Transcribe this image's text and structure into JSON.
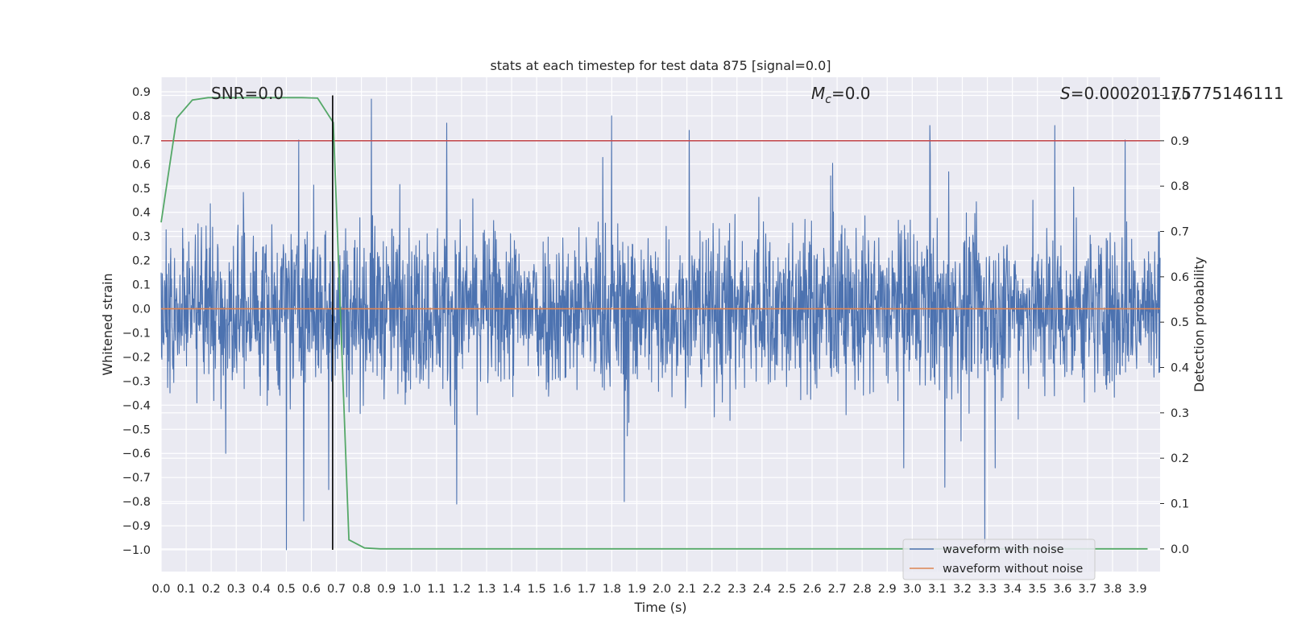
{
  "chart_data": {
    "type": "line",
    "title": "stats at each timestep for test data 875 [signal=0.0]",
    "xlabel": "Time (s)",
    "ylabel": "Whitened strain",
    "y2label": "Detection probability",
    "xlim": [
      0.0,
      3.99
    ],
    "ylim": [
      -1.09,
      0.96
    ],
    "y2lim": [
      -0.05,
      1.04
    ],
    "x_ticks": [
      "0.0",
      "0.1",
      "0.2",
      "0.3",
      "0.4",
      "0.5",
      "0.6",
      "0.7",
      "0.8",
      "0.9",
      "1.0",
      "1.1",
      "1.2",
      "1.3",
      "1.4",
      "1.5",
      "1.6",
      "1.7",
      "1.8",
      "1.9",
      "2.0",
      "2.1",
      "2.2",
      "2.3",
      "2.4",
      "2.5",
      "2.6",
      "2.7",
      "2.8",
      "2.9",
      "3.0",
      "3.1",
      "3.2",
      "3.3",
      "3.4",
      "3.5",
      "3.6",
      "3.7",
      "3.8",
      "3.9"
    ],
    "y_ticks": [
      "0.9",
      "0.8",
      "0.7",
      "0.6",
      "0.5",
      "0.4",
      "0.3",
      "0.2",
      "0.1",
      "0.0",
      "−0.1",
      "−0.2",
      "−0.3",
      "−0.4",
      "−0.5",
      "−0.6",
      "−0.7",
      "−0.8",
      "−0.9",
      "−1.0"
    ],
    "y2_ticks": [
      "1.0",
      "0.9",
      "0.8",
      "0.7",
      "0.6",
      "0.5",
      "0.4",
      "0.3",
      "0.2",
      "0.1",
      "0.0"
    ],
    "grid": true,
    "legend_position": "lower right",
    "series": [
      {
        "name": "waveform with noise",
        "axis": "left",
        "color": "#4c72b0",
        "style": "dense noise, amplitude roughly ±0.5 with spikes up to 0.87 and down to −1.0",
        "sample_rate_hz": 2048,
        "peaks": [
          {
            "x": 0.5,
            "y": -1.0
          },
          {
            "x": 0.84,
            "y": 0.87
          },
          {
            "x": 3.29,
            "y": -0.97
          },
          {
            "x": 1.8,
            "y": 0.8
          },
          {
            "x": 1.14,
            "y": 0.77
          },
          {
            "x": 2.11,
            "y": 0.74
          },
          {
            "x": 3.07,
            "y": 0.76
          },
          {
            "x": 3.57,
            "y": 0.76
          },
          {
            "x": 3.85,
            "y": 0.7
          },
          {
            "x": 0.55,
            "y": 0.7
          },
          {
            "x": 0.57,
            "y": -0.88
          },
          {
            "x": 0.67,
            "y": -0.75
          },
          {
            "x": 1.18,
            "y": -0.81
          },
          {
            "x": 1.85,
            "y": -0.8
          },
          {
            "x": 3.13,
            "y": -0.74
          }
        ]
      },
      {
        "name": "waveform without noise",
        "axis": "left",
        "color": "#dd8452",
        "x": [
          0.0,
          3.99
        ],
        "y": [
          0.0,
          0.0
        ]
      },
      {
        "name": "detection probability",
        "axis": "right",
        "color": "#55a868",
        "x": [
          0.0,
          0.0625,
          0.125,
          0.1875,
          0.25,
          0.3125,
          0.375,
          0.4375,
          0.5,
          0.5625,
          0.625,
          0.6875,
          0.75,
          0.8125,
          0.875,
          0.9375,
          1.0,
          1.5,
          2.0,
          2.5,
          3.0,
          3.5,
          3.94
        ],
        "y": [
          0.72,
          0.95,
          0.99,
          0.995,
          0.995,
          0.995,
          0.995,
          0.995,
          0.995,
          0.995,
          0.994,
          0.94,
          0.02,
          0.002,
          0.0,
          0.0,
          0.0,
          0.0,
          0.0,
          0.0,
          0.0,
          0.0,
          0.0
        ]
      }
    ],
    "threshold_line": {
      "axis": "right",
      "y": 0.9,
      "color": "#c44e52"
    },
    "vertical_line": {
      "x": 0.685,
      "color": "#000000"
    },
    "annotations": [
      {
        "id": "snr",
        "text": "SNR=0.0"
      },
      {
        "id": "mc",
        "text_main": "M",
        "text_sub": "c",
        "text_tail": "=0.0"
      },
      {
        "id": "s",
        "text_main": "S",
        "text_tail": "=0.000201175775146111"
      }
    ],
    "legend": [
      "waveform with noise",
      "waveform without noise"
    ]
  }
}
